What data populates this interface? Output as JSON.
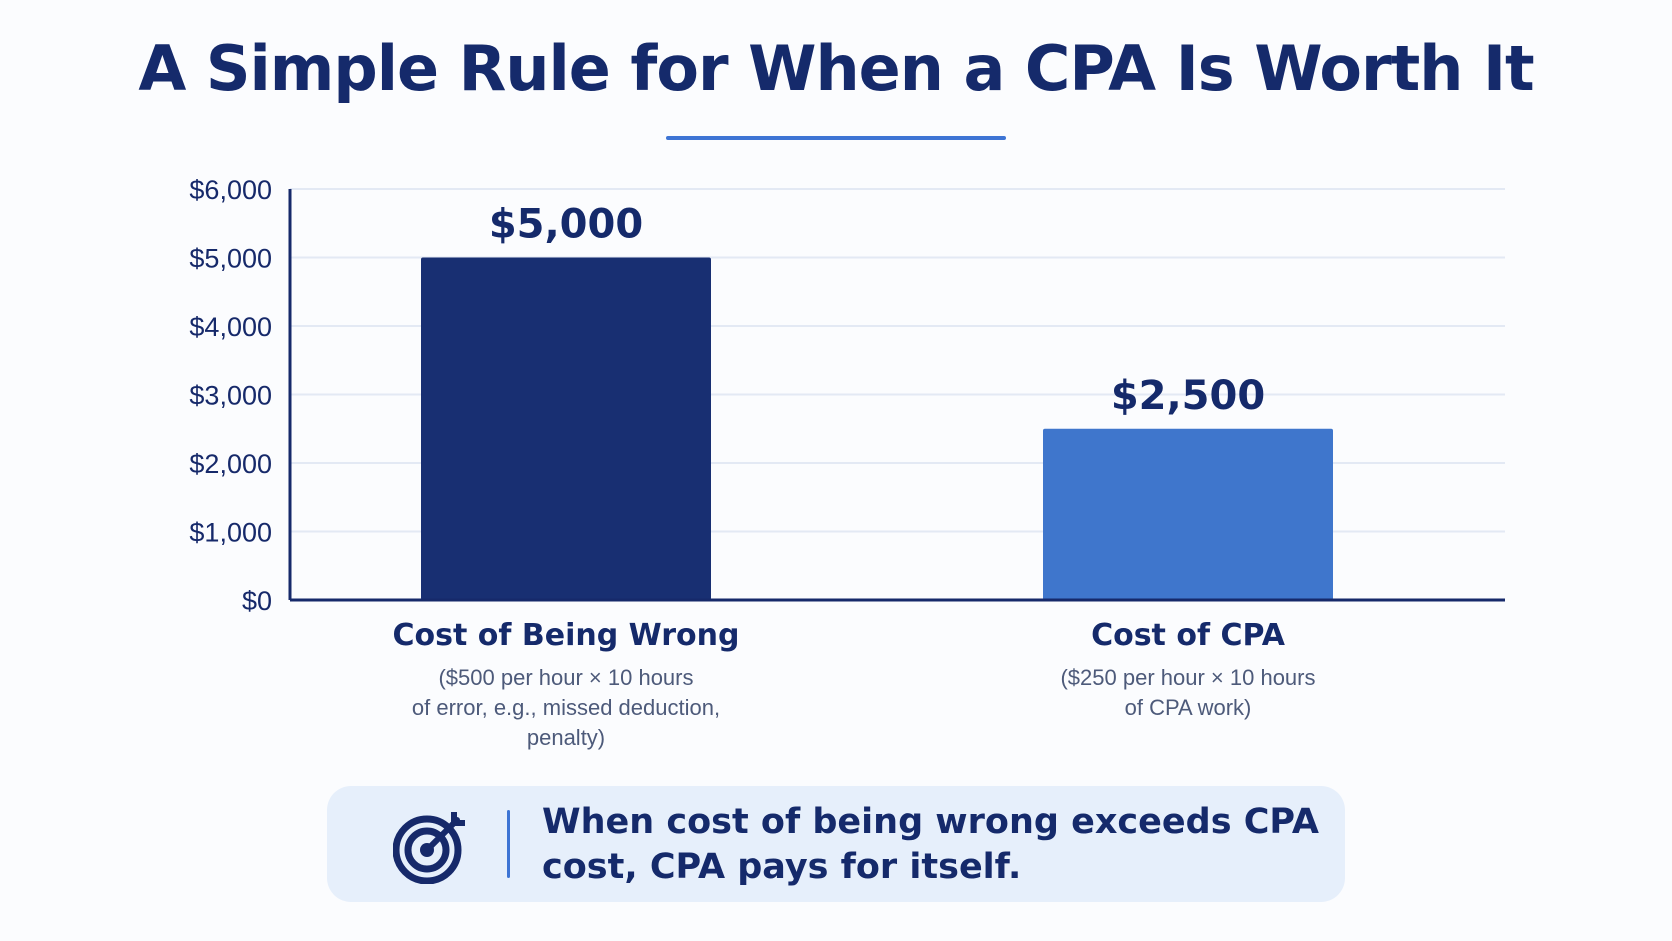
{
  "title": "A Simple Rule for When a CPA Is Worth It",
  "chart_data": {
    "type": "bar",
    "categories": [
      "Cost of Being Wrong",
      "Cost of CPA"
    ],
    "subtitles": [
      "($500 per hour × 10 hours\nof error, e.g., missed deduction,\npenalty)",
      "($250 per hour × 10 hours\nof CPA work)"
    ],
    "values": [
      5000,
      2500
    ],
    "data_labels": [
      "$5,000",
      "$2,500"
    ],
    "bar_colors": [
      "#182f72",
      "#3f76cc"
    ],
    "ylim": [
      0,
      6000
    ],
    "yticks": [
      0,
      1000,
      2000,
      3000,
      4000,
      5000,
      6000
    ],
    "ytick_labels": [
      "$0",
      "$1,000",
      "$2,000",
      "$3,000",
      "$4,000",
      "$5,000",
      "$6,000"
    ],
    "grid": true,
    "xlabel": "",
    "ylabel": ""
  },
  "callout": {
    "icon": "target-icon",
    "text": "When cost of being wrong exceeds CPA cost, CPA pays for itself."
  },
  "colors": {
    "navy": "#152a6b",
    "accent": "#3d74d4",
    "grid": "#e3e9f4",
    "callout_bg": "#e6effb"
  }
}
